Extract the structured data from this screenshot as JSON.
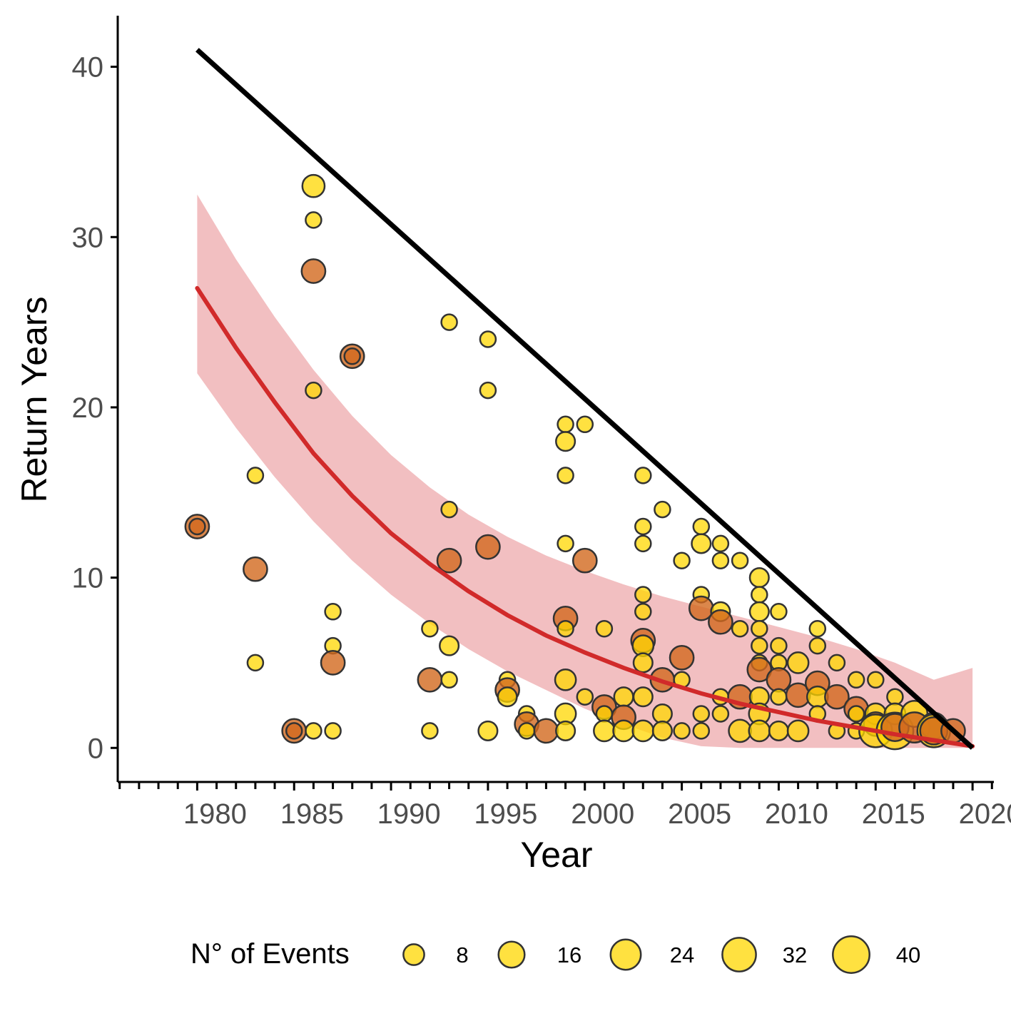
{
  "chart_data": {
    "type": "scatter",
    "xlabel": "Year",
    "ylabel": "Return Years",
    "xlim": [
      1975.9,
      2021.1
    ],
    "ylim": [
      -2,
      43
    ],
    "x_ticks": [
      1980,
      1985,
      1990,
      1995,
      2000,
      2005,
      2010,
      2015,
      2020
    ],
    "x_tick_labels": [
      "1980",
      "1985",
      "1990",
      "1995",
      "2000",
      "2005",
      "2010",
      "2015",
      "2020"
    ],
    "y_ticks": [
      0,
      10,
      20,
      30,
      40
    ],
    "y_tick_labels": [
      "0",
      "10",
      "20",
      "30",
      "40"
    ],
    "grid": false,
    "legend": {
      "position": "bottom",
      "title": "N° of Events",
      "sizes": [
        8,
        16,
        24,
        32,
        40
      ],
      "labels": [
        "8",
        "16",
        "24",
        "32",
        "40"
      ]
    },
    "colors": {
      "point_light": "#FFD700",
      "point_dark": "#D2691E",
      "point_stroke": "#333333",
      "trend": "#D12A2A",
      "ribbon": "#E88A8E",
      "line": "#000000"
    },
    "max_return_line": {
      "x": [
        1980,
        2020
      ],
      "y": [
        41,
        0
      ]
    },
    "trend_curve": {
      "x": [
        1980,
        1982,
        1984,
        1986,
        1988,
        1990,
        1992,
        1994,
        1996,
        1998,
        2000,
        2002,
        2004,
        2006,
        2008,
        2010,
        2012,
        2014,
        2016,
        2018,
        2020
      ],
      "y": [
        27.0,
        23.5,
        20.3,
        17.3,
        14.8,
        12.6,
        10.8,
        9.2,
        7.8,
        6.6,
        5.6,
        4.7,
        3.9,
        3.2,
        2.6,
        2.1,
        1.6,
        1.2,
        0.8,
        0.45,
        0.1
      ],
      "lower": [
        22.0,
        18.8,
        15.9,
        13.3,
        11.0,
        9.0,
        7.3,
        5.8,
        4.5,
        3.4,
        2.3,
        1.4,
        0.6,
        0.1,
        0.0,
        0.0,
        0.0,
        0.0,
        0.0,
        0.0,
        0.0
      ],
      "upper": [
        32.5,
        28.7,
        25.3,
        22.2,
        19.5,
        17.2,
        15.3,
        13.7,
        12.4,
        11.3,
        10.4,
        9.6,
        8.9,
        8.3,
        7.7,
        7.1,
        6.5,
        5.8,
        5.0,
        4.0,
        4.7
      ]
    },
    "points": [
      {
        "x": 1980,
        "y": 13,
        "n": 12,
        "tone": "dark"
      },
      {
        "x": 1980,
        "y": 13,
        "n": 3,
        "tone": "dark"
      },
      {
        "x": 1983,
        "y": 16,
        "n": 3,
        "tone": "light"
      },
      {
        "x": 1983,
        "y": 10.5,
        "n": 12,
        "tone": "dark"
      },
      {
        "x": 1983,
        "y": 5,
        "n": 3,
        "tone": "light"
      },
      {
        "x": 1985,
        "y": 1,
        "n": 12,
        "tone": "dark"
      },
      {
        "x": 1985,
        "y": 1,
        "n": 3,
        "tone": "dark"
      },
      {
        "x": 1986,
        "y": 33,
        "n": 10,
        "tone": "light"
      },
      {
        "x": 1986,
        "y": 31,
        "n": 3,
        "tone": "light"
      },
      {
        "x": 1986,
        "y": 28,
        "n": 12,
        "tone": "dark"
      },
      {
        "x": 1986,
        "y": 21,
        "n": 3,
        "tone": "light"
      },
      {
        "x": 1986,
        "y": 1,
        "n": 3,
        "tone": "light"
      },
      {
        "x": 1987,
        "y": 8,
        "n": 3,
        "tone": "light"
      },
      {
        "x": 1987,
        "y": 6,
        "n": 3,
        "tone": "light"
      },
      {
        "x": 1987,
        "y": 5,
        "n": 12,
        "tone": "dark"
      },
      {
        "x": 1987,
        "y": 1,
        "n": 3,
        "tone": "light"
      },
      {
        "x": 1988,
        "y": 23,
        "n": 12,
        "tone": "dark"
      },
      {
        "x": 1988,
        "y": 23,
        "n": 3,
        "tone": "dark"
      },
      {
        "x": 1992,
        "y": 7,
        "n": 3,
        "tone": "light"
      },
      {
        "x": 1992,
        "y": 4,
        "n": 12,
        "tone": "dark"
      },
      {
        "x": 1992,
        "y": 1,
        "n": 3,
        "tone": "light"
      },
      {
        "x": 1993,
        "y": 25,
        "n": 3,
        "tone": "light"
      },
      {
        "x": 1993,
        "y": 14,
        "n": 3,
        "tone": "light"
      },
      {
        "x": 1993,
        "y": 11,
        "n": 12,
        "tone": "dark"
      },
      {
        "x": 1993,
        "y": 6,
        "n": 6,
        "tone": "light"
      },
      {
        "x": 1993,
        "y": 4,
        "n": 3,
        "tone": "light"
      },
      {
        "x": 1995,
        "y": 24,
        "n": 3,
        "tone": "light"
      },
      {
        "x": 1995,
        "y": 21,
        "n": 3,
        "tone": "light"
      },
      {
        "x": 1995,
        "y": 11.8,
        "n": 12,
        "tone": "dark"
      },
      {
        "x": 1995,
        "y": 1,
        "n": 6,
        "tone": "light"
      },
      {
        "x": 1996,
        "y": 4,
        "n": 3,
        "tone": "light"
      },
      {
        "x": 1996,
        "y": 3.4,
        "n": 12,
        "tone": "dark"
      },
      {
        "x": 1996,
        "y": 3,
        "n": 6,
        "tone": "light"
      },
      {
        "x": 1997,
        "y": 2,
        "n": 3,
        "tone": "light"
      },
      {
        "x": 1997,
        "y": 1.4,
        "n": 12,
        "tone": "dark"
      },
      {
        "x": 1997,
        "y": 1,
        "n": 3,
        "tone": "light"
      },
      {
        "x": 1998,
        "y": 1,
        "n": 12,
        "tone": "dark"
      },
      {
        "x": 1999,
        "y": 19,
        "n": 3,
        "tone": "light"
      },
      {
        "x": 1999,
        "y": 18,
        "n": 6,
        "tone": "light"
      },
      {
        "x": 1999,
        "y": 16,
        "n": 3,
        "tone": "light"
      },
      {
        "x": 1999,
        "y": 12,
        "n": 3,
        "tone": "light"
      },
      {
        "x": 1999,
        "y": 7.6,
        "n": 12,
        "tone": "dark"
      },
      {
        "x": 1999,
        "y": 7,
        "n": 3,
        "tone": "light"
      },
      {
        "x": 1999,
        "y": 4,
        "n": 8,
        "tone": "light"
      },
      {
        "x": 1999,
        "y": 2,
        "n": 8,
        "tone": "light"
      },
      {
        "x": 1999,
        "y": 1,
        "n": 6,
        "tone": "light"
      },
      {
        "x": 2000,
        "y": 19,
        "n": 3,
        "tone": "light"
      },
      {
        "x": 2000,
        "y": 11,
        "n": 12,
        "tone": "dark"
      },
      {
        "x": 2000,
        "y": 3,
        "n": 3,
        "tone": "light"
      },
      {
        "x": 2001,
        "y": 7,
        "n": 3,
        "tone": "light"
      },
      {
        "x": 2001,
        "y": 2.4,
        "n": 12,
        "tone": "dark"
      },
      {
        "x": 2001,
        "y": 2,
        "n": 3,
        "tone": "light"
      },
      {
        "x": 2001,
        "y": 1,
        "n": 8,
        "tone": "light"
      },
      {
        "x": 2002,
        "y": 3,
        "n": 6,
        "tone": "light"
      },
      {
        "x": 2002,
        "y": 1.8,
        "n": 12,
        "tone": "dark"
      },
      {
        "x": 2002,
        "y": 1,
        "n": 8,
        "tone": "light"
      },
      {
        "x": 2003,
        "y": 16,
        "n": 3,
        "tone": "light"
      },
      {
        "x": 2003,
        "y": 13,
        "n": 3,
        "tone": "light"
      },
      {
        "x": 2003,
        "y": 12,
        "n": 3,
        "tone": "light"
      },
      {
        "x": 2003,
        "y": 9,
        "n": 3,
        "tone": "light"
      },
      {
        "x": 2003,
        "y": 8,
        "n": 3,
        "tone": "light"
      },
      {
        "x": 2003,
        "y": 6.3,
        "n": 12,
        "tone": "dark"
      },
      {
        "x": 2003,
        "y": 6,
        "n": 8,
        "tone": "light"
      },
      {
        "x": 2003,
        "y": 5,
        "n": 6,
        "tone": "light"
      },
      {
        "x": 2003,
        "y": 3,
        "n": 6,
        "tone": "light"
      },
      {
        "x": 2003,
        "y": 1,
        "n": 8,
        "tone": "light"
      },
      {
        "x": 2004,
        "y": 14,
        "n": 3,
        "tone": "light"
      },
      {
        "x": 2004,
        "y": 4,
        "n": 12,
        "tone": "dark"
      },
      {
        "x": 2004,
        "y": 2,
        "n": 6,
        "tone": "light"
      },
      {
        "x": 2004,
        "y": 1,
        "n": 6,
        "tone": "light"
      },
      {
        "x": 2005,
        "y": 11,
        "n": 3,
        "tone": "light"
      },
      {
        "x": 2005,
        "y": 5.3,
        "n": 12,
        "tone": "dark"
      },
      {
        "x": 2005,
        "y": 4,
        "n": 3,
        "tone": "light"
      },
      {
        "x": 2005,
        "y": 1,
        "n": 3,
        "tone": "light"
      },
      {
        "x": 2006,
        "y": 13,
        "n": 3,
        "tone": "light"
      },
      {
        "x": 2006,
        "y": 12,
        "n": 6,
        "tone": "light"
      },
      {
        "x": 2006,
        "y": 9,
        "n": 3,
        "tone": "light"
      },
      {
        "x": 2006,
        "y": 8.2,
        "n": 12,
        "tone": "dark"
      },
      {
        "x": 2006,
        "y": 2,
        "n": 3,
        "tone": "light"
      },
      {
        "x": 2006,
        "y": 1,
        "n": 3,
        "tone": "light"
      },
      {
        "x": 2007,
        "y": 12,
        "n": 3,
        "tone": "light"
      },
      {
        "x": 2007,
        "y": 11,
        "n": 3,
        "tone": "light"
      },
      {
        "x": 2007,
        "y": 8,
        "n": 6,
        "tone": "light"
      },
      {
        "x": 2007,
        "y": 7.4,
        "n": 12,
        "tone": "dark"
      },
      {
        "x": 2007,
        "y": 3,
        "n": 3,
        "tone": "light"
      },
      {
        "x": 2007,
        "y": 2,
        "n": 3,
        "tone": "light"
      },
      {
        "x": 2008,
        "y": 11,
        "n": 3,
        "tone": "light"
      },
      {
        "x": 2008,
        "y": 7,
        "n": 3,
        "tone": "light"
      },
      {
        "x": 2008,
        "y": 3,
        "n": 12,
        "tone": "dark"
      },
      {
        "x": 2008,
        "y": 1,
        "n": 10,
        "tone": "light"
      },
      {
        "x": 2009,
        "y": 10,
        "n": 6,
        "tone": "light"
      },
      {
        "x": 2009,
        "y": 9,
        "n": 3,
        "tone": "light"
      },
      {
        "x": 2009,
        "y": 8,
        "n": 6,
        "tone": "light"
      },
      {
        "x": 2009,
        "y": 7,
        "n": 3,
        "tone": "light"
      },
      {
        "x": 2009,
        "y": 6,
        "n": 3,
        "tone": "light"
      },
      {
        "x": 2009,
        "y": 5,
        "n": 3,
        "tone": "light"
      },
      {
        "x": 2009,
        "y": 4.6,
        "n": 12,
        "tone": "dark"
      },
      {
        "x": 2009,
        "y": 3,
        "n": 6,
        "tone": "light"
      },
      {
        "x": 2009,
        "y": 2,
        "n": 8,
        "tone": "light"
      },
      {
        "x": 2009,
        "y": 1,
        "n": 8,
        "tone": "light"
      },
      {
        "x": 2010,
        "y": 8,
        "n": 3,
        "tone": "light"
      },
      {
        "x": 2010,
        "y": 6,
        "n": 3,
        "tone": "light"
      },
      {
        "x": 2010,
        "y": 5,
        "n": 3,
        "tone": "light"
      },
      {
        "x": 2010,
        "y": 4,
        "n": 12,
        "tone": "dark"
      },
      {
        "x": 2010,
        "y": 3,
        "n": 3,
        "tone": "light"
      },
      {
        "x": 2010,
        "y": 1,
        "n": 6,
        "tone": "light"
      },
      {
        "x": 2011,
        "y": 5,
        "n": 8,
        "tone": "light"
      },
      {
        "x": 2011,
        "y": 3.1,
        "n": 12,
        "tone": "dark"
      },
      {
        "x": 2011,
        "y": 1,
        "n": 8,
        "tone": "light"
      },
      {
        "x": 2012,
        "y": 7,
        "n": 3,
        "tone": "light"
      },
      {
        "x": 2012,
        "y": 6,
        "n": 3,
        "tone": "light"
      },
      {
        "x": 2012,
        "y": 3.8,
        "n": 12,
        "tone": "dark"
      },
      {
        "x": 2012,
        "y": 3,
        "n": 8,
        "tone": "light"
      },
      {
        "x": 2012,
        "y": 2,
        "n": 3,
        "tone": "light"
      },
      {
        "x": 2013,
        "y": 5,
        "n": 3,
        "tone": "light"
      },
      {
        "x": 2013,
        "y": 3,
        "n": 12,
        "tone": "dark"
      },
      {
        "x": 2013,
        "y": 1,
        "n": 3,
        "tone": "light"
      },
      {
        "x": 2014,
        "y": 4,
        "n": 3,
        "tone": "light"
      },
      {
        "x": 2014,
        "y": 2.3,
        "n": 12,
        "tone": "dark"
      },
      {
        "x": 2014,
        "y": 2,
        "n": 3,
        "tone": "light"
      },
      {
        "x": 2014,
        "y": 1,
        "n": 3,
        "tone": "light"
      },
      {
        "x": 2015,
        "y": 4,
        "n": 3,
        "tone": "light"
      },
      {
        "x": 2015,
        "y": 2,
        "n": 8,
        "tone": "light"
      },
      {
        "x": 2015,
        "y": 1.4,
        "n": 12,
        "tone": "dark"
      },
      {
        "x": 2015,
        "y": 1,
        "n": 30,
        "tone": "light"
      },
      {
        "x": 2016,
        "y": 3,
        "n": 3,
        "tone": "light"
      },
      {
        "x": 2016,
        "y": 2,
        "n": 8,
        "tone": "light"
      },
      {
        "x": 2016,
        "y": 1,
        "n": 40,
        "tone": "light"
      },
      {
        "x": 2016,
        "y": 1.2,
        "n": 18,
        "tone": "dark"
      },
      {
        "x": 2017,
        "y": 2,
        "n": 16,
        "tone": "light"
      },
      {
        "x": 2017,
        "y": 1.2,
        "n": 24,
        "tone": "dark"
      },
      {
        "x": 2018,
        "y": 1.3,
        "n": 16,
        "tone": "dark"
      },
      {
        "x": 2018,
        "y": 1,
        "n": 30,
        "tone": "light"
      },
      {
        "x": 2018,
        "y": 1,
        "n": 18,
        "tone": "dark"
      },
      {
        "x": 2019,
        "y": 1,
        "n": 12,
        "tone": "dark"
      }
    ]
  }
}
